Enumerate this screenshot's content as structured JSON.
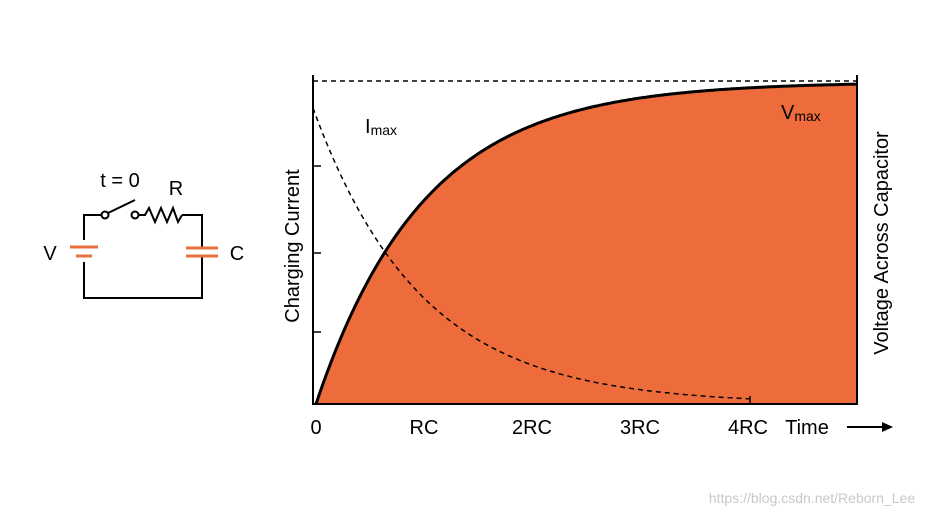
{
  "circuit": {
    "switch_label": "t = 0",
    "resistor_label": "R",
    "source_label": "V",
    "capacitor_label": "C"
  },
  "graph": {
    "y_axis_left": "Charging Current",
    "y_axis_right": "Voltage Across Capacitor",
    "current_label": {
      "symbol": "I",
      "subscript": "max"
    },
    "voltage_label": {
      "symbol": "V",
      "subscript": "max"
    },
    "x_labels": [
      "0",
      "RC",
      "2RC",
      "3RC",
      "4RC"
    ],
    "x_axis_title": "Time"
  },
  "watermark": "https://blog.csdn.net/Reborn_Lee"
}
